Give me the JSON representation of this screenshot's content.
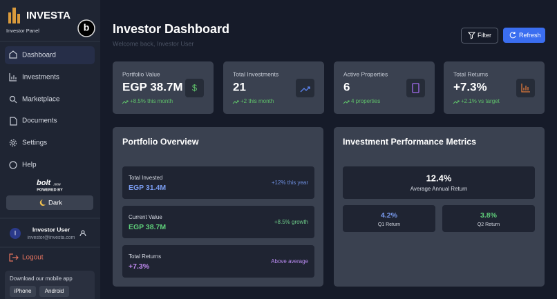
{
  "sidebar": {
    "brand": "INVESTA",
    "subtitle": "Investor Panel",
    "badge": "b",
    "nav": [
      "Dashboard",
      "Investments",
      "Marketplace",
      "Documents",
      "Settings",
      "Help"
    ],
    "powered": {
      "logo": "bolt",
      "logo_suffix": ".new",
      "label": "POWERED BY"
    },
    "theme_button": "Dark",
    "user": {
      "initial": "I",
      "name": "Investor User",
      "email": "investor@investa.com"
    },
    "logout": "Logout",
    "mobile": {
      "title": "Download our mobile app",
      "buttons": [
        "iPhone",
        "Android"
      ]
    }
  },
  "header": {
    "title": "Investor Dashboard",
    "subtitle": "Welcome back, Investor User",
    "buttons": [
      "Filter",
      "Refresh"
    ]
  },
  "stats": [
    {
      "label": "Portfolio Value",
      "value": "EGP 38.7M",
      "change": "+8.5% this month",
      "icon": "$"
    },
    {
      "label": "Total Investments",
      "value": "21",
      "change": "+2 this month"
    },
    {
      "label": "Active Properties",
      "value": "6",
      "change": "4 properties"
    },
    {
      "label": "Total Returns",
      "value": "+7.3%",
      "change": "+2.1% vs target"
    }
  ],
  "portfolio_overview": {
    "title": "Portfolio Overview",
    "items": [
      {
        "label": "Total Invested",
        "value": "EGP 31.4M",
        "note": "+12% this year"
      },
      {
        "label": "Current Value",
        "value": "EGP 38.7M",
        "note": "+8.5% growth"
      },
      {
        "label": "Total Returns",
        "value": "+7.3%",
        "note": "Above average"
      }
    ]
  },
  "performance": {
    "title": "Investment Performance Metrics",
    "main": {
      "value": "12.4%",
      "label": "Average Annual Return"
    },
    "quarters": [
      {
        "value": "4.2%",
        "label": "Q1 Return"
      },
      {
        "value": "3.8%",
        "label": "Q2 Return"
      }
    ]
  }
}
